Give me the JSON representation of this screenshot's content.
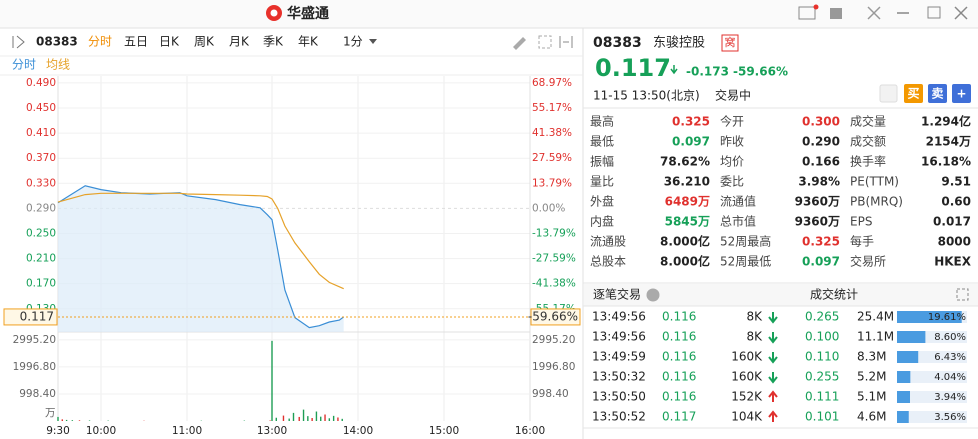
{
  "header": {
    "brand": "华盛通"
  },
  "toolbar": {
    "code": "08383",
    "periods": [
      "分时",
      "五日",
      "日K",
      "周K",
      "月K",
      "季K",
      "年K"
    ],
    "interval": "1分"
  },
  "chart_data": {
    "type": "line",
    "x": [
      "9:30",
      "9:49",
      "10:00",
      "10:14",
      "10:34",
      "10:55",
      "11:00",
      "11:20",
      "11:37",
      "11:51",
      "11:56",
      "13:00",
      "13:04",
      "13:09",
      "13:16",
      "13:26",
      "13:33",
      "13:40",
      "13:47",
      "13:50"
    ],
    "series": [
      {
        "name": "分时",
        "color": "#3a8ed6",
        "values": [
          0.299,
          0.326,
          0.32,
          0.315,
          0.313,
          0.315,
          0.31,
          0.304,
          0.296,
          0.291,
          0.28,
          0.272,
          0.224,
          0.16,
          0.116,
          0.1,
          0.103,
          0.109,
          0.112,
          0.117
        ]
      },
      {
        "name": "均线",
        "color": "#e6a22a",
        "values": [
          0.3,
          0.312,
          0.314,
          0.314,
          0.314,
          0.314,
          0.313,
          0.312,
          0.311,
          0.31,
          0.309,
          0.305,
          0.29,
          0.262,
          0.235,
          0.205,
          0.185,
          0.172,
          0.165,
          0.162
        ]
      }
    ],
    "ylim": [
      0.093,
      0.501
    ],
    "yticks": [
      {
        "value": 0.49,
        "label": "0.490"
      },
      {
        "value": 0.45,
        "label": "0.450"
      },
      {
        "value": 0.41,
        "label": "0.410"
      },
      {
        "value": 0.37,
        "label": "0.370"
      },
      {
        "value": 0.33,
        "label": "0.330"
      },
      {
        "value": 0.29,
        "label": "0.290"
      },
      {
        "value": 0.25,
        "label": "0.250"
      },
      {
        "value": 0.21,
        "label": "0.210"
      },
      {
        "value": 0.17,
        "label": "0.170"
      },
      {
        "value": 0.13,
        "label": "0.130"
      }
    ],
    "y2lim": [
      -67.93,
      72.76
    ],
    "y2ticks": [
      {
        "value": 68.97,
        "label": "68.97%"
      },
      {
        "value": 55.17,
        "label": "55.17%"
      },
      {
        "value": 41.38,
        "label": "41.38%"
      },
      {
        "value": 27.59,
        "label": "27.59%"
      },
      {
        "value": 13.79,
        "label": "13.79%"
      },
      {
        "value": 0,
        "label": "0.00%"
      },
      {
        "value": -13.79,
        "label": "-13.79%"
      },
      {
        "value": -27.59,
        "label": "-27.59%"
      },
      {
        "value": -41.38,
        "label": "-41.38%"
      },
      {
        "value": -55.17,
        "label": "-55.17%"
      }
    ],
    "xticks": [
      "9:30",
      "10:00",
      "11:00",
      "13:00",
      "14:00",
      "15:00",
      "16:00"
    ],
    "current": {
      "value": 0.117,
      "label": "0.117",
      "change_label": "-59.66%"
    },
    "grid": true,
    "volume": {
      "unit": "万",
      "color": "#1e9e55",
      "ylim": [
        0,
        3250
      ],
      "yticks": [
        {
          "value": 998.4,
          "label": "998.40"
        },
        {
          "value": 1996.8,
          "label": "1996.80"
        },
        {
          "value": 2995.2,
          "label": "2995.20"
        }
      ],
      "x": [
        "9:30",
        "9:33",
        "9:36",
        "9:40",
        "9:45",
        "9:52",
        "10:05",
        "10:30",
        "11:10",
        "11:40",
        "11:58",
        "13:00",
        "13:03",
        "13:08",
        "13:12",
        "13:15",
        "13:19",
        "13:22",
        "13:25",
        "13:28",
        "13:31",
        "13:34",
        "13:37",
        "13:40",
        "13:43",
        "13:46",
        "13:49"
      ],
      "values": [
        150,
        60,
        40,
        30,
        25,
        20,
        15,
        10,
        12,
        15,
        20,
        2960,
        120,
        200,
        90,
        300,
        150,
        420,
        180,
        110,
        350,
        160,
        240,
        100,
        190,
        130,
        80
      ]
    }
  },
  "quote": {
    "code": "08383",
    "name": "东骏控股",
    "badge": "窝",
    "price": "0.117",
    "change": "-0.173",
    "change_pct": "-59.66%",
    "time": "11-15 13:50(北京)",
    "status": "交易中",
    "buttons": [
      "买",
      "卖",
      "+"
    ]
  },
  "stats": [
    [
      {
        "label": "最高",
        "value": "0.325",
        "tone": "up"
      },
      {
        "label": "今开",
        "value": "0.300",
        "tone": "up"
      },
      {
        "label": "成交量",
        "value": "1.294亿",
        "tone": "flat"
      }
    ],
    [
      {
        "label": "最低",
        "value": "0.097",
        "tone": "down"
      },
      {
        "label": "昨收",
        "value": "0.290",
        "tone": "flat"
      },
      {
        "label": "成交额",
        "value": "2154万",
        "tone": "flat"
      }
    ],
    [
      {
        "label": "振幅",
        "value": "78.62%",
        "tone": "flat"
      },
      {
        "label": "均价",
        "value": "0.166",
        "tone": "flat"
      },
      {
        "label": "换手率",
        "value": "16.18%",
        "tone": "flat"
      }
    ],
    [
      {
        "label": "量比",
        "value": "36.210",
        "tone": "flat"
      },
      {
        "label": "委比",
        "value": "3.98%",
        "tone": "flat"
      },
      {
        "label": "PE(TTM)",
        "value": "9.51",
        "tone": "flat"
      }
    ],
    [
      {
        "label": "外盘",
        "value": "6489万",
        "tone": "up"
      },
      {
        "label": "流通值",
        "value": "9360万",
        "tone": "flat"
      },
      {
        "label": "PB(MRQ)",
        "value": "0.60",
        "tone": "flat"
      }
    ],
    [
      {
        "label": "内盘",
        "value": "5845万",
        "tone": "down"
      },
      {
        "label": "总市值",
        "value": "9360万",
        "tone": "flat"
      },
      {
        "label": "EPS",
        "value": "0.017",
        "tone": "flat"
      }
    ],
    [
      {
        "label": "流通股",
        "value": "8.000亿",
        "tone": "flat"
      },
      {
        "label": "52周最高",
        "value": "0.325",
        "tone": "up"
      },
      {
        "label": "每手",
        "value": "8000",
        "tone": "flat"
      }
    ],
    [
      {
        "label": "总股本",
        "value": "8.000亿",
        "tone": "flat"
      },
      {
        "label": "52周最低",
        "value": "0.097",
        "tone": "down"
      },
      {
        "label": "交易所",
        "value": "HKEX",
        "tone": "flat"
      }
    ]
  ],
  "trades": {
    "title": "逐笔交易",
    "rows": [
      {
        "time": "13:49:56",
        "price": "0.116",
        "volume": "8K",
        "dir": "down"
      },
      {
        "time": "13:49:56",
        "price": "0.116",
        "volume": "8K",
        "dir": "down"
      },
      {
        "time": "13:49:59",
        "price": "0.116",
        "volume": "160K",
        "dir": "down"
      },
      {
        "time": "13:50:32",
        "price": "0.116",
        "volume": "160K",
        "dir": "down"
      },
      {
        "time": "13:50:50",
        "price": "0.116",
        "volume": "152K",
        "dir": "up"
      },
      {
        "time": "13:50:52",
        "price": "0.117",
        "volume": "104K",
        "dir": "up"
      }
    ]
  },
  "volume_stats": {
    "title": "成交统计",
    "rows": [
      {
        "price": "0.265",
        "volume": "25.4M",
        "share": 19.61,
        "share_label": "19.61%"
      },
      {
        "price": "0.100",
        "volume": "11.1M",
        "share": 8.6,
        "share_label": "8.60%"
      },
      {
        "price": "0.110",
        "volume": "8.3M",
        "share": 6.43,
        "share_label": "6.43%"
      },
      {
        "price": "0.255",
        "volume": "5.2M",
        "share": 4.04,
        "share_label": "4.04%"
      },
      {
        "price": "0.111",
        "volume": "5.1M",
        "share": 3.94,
        "share_label": "3.94%"
      },
      {
        "price": "0.101",
        "volume": "4.6M",
        "share": 3.56,
        "share_label": "3.56%"
      }
    ]
  }
}
